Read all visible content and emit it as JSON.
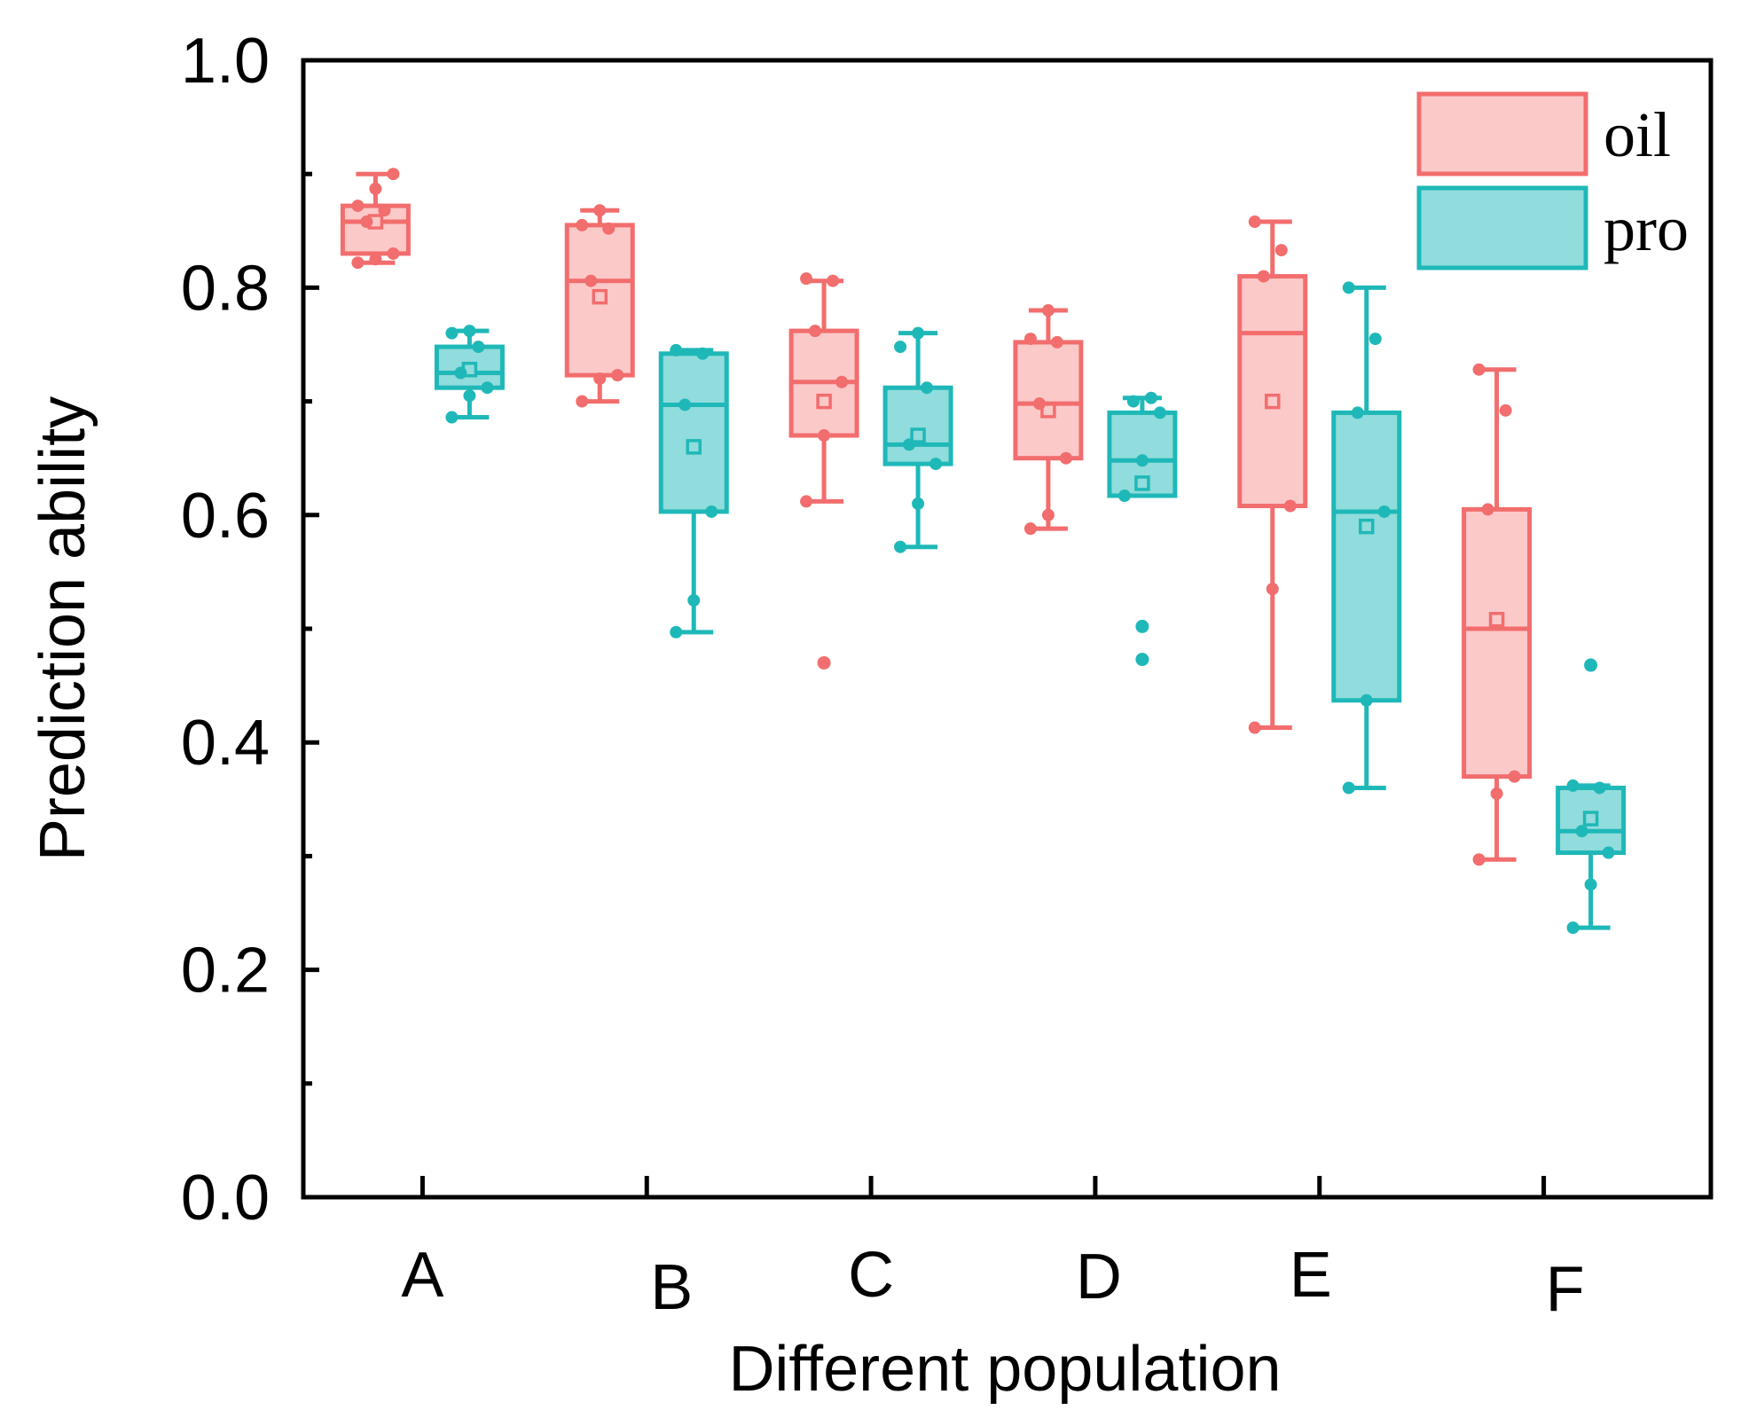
{
  "chart_data": {
    "type": "box",
    "title": "",
    "xlabel": "Different population",
    "ylabel": "Prediction ability",
    "ylim": [
      0.0,
      1.0
    ],
    "yticks": [
      "0.0",
      "0.2",
      "0.4",
      "0.6",
      "0.8",
      "1.0"
    ],
    "categories": [
      "A",
      "B",
      "C",
      "D",
      "E",
      "F"
    ],
    "legend_position": "top-right",
    "series": [
      {
        "name": "oil",
        "stroke": "#f26d6d",
        "fill": "#fcc9c9",
        "boxes": [
          {
            "whisker_low": 0.822,
            "q1": 0.83,
            "median": 0.858,
            "q3": 0.872,
            "whisker_high": 0.9,
            "mean": 0.858,
            "points": [
              0.822,
              0.825,
              0.83,
              0.858,
              0.868,
              0.872,
              0.887,
              0.9
            ],
            "outliers": []
          },
          {
            "whisker_low": 0.7,
            "q1": 0.723,
            "median": 0.806,
            "q3": 0.855,
            "whisker_high": 0.868,
            "mean": 0.792,
            "points": [
              0.7,
              0.72,
              0.723,
              0.806,
              0.852,
              0.855,
              0.868
            ],
            "outliers": []
          },
          {
            "whisker_low": 0.612,
            "q1": 0.67,
            "median": 0.717,
            "q3": 0.762,
            "whisker_high": 0.806,
            "mean": 0.7,
            "points": [
              0.612,
              0.67,
              0.717,
              0.762,
              0.806,
              0.808
            ],
            "outliers": [
              0.47
            ]
          },
          {
            "whisker_low": 0.588,
            "q1": 0.65,
            "median": 0.698,
            "q3": 0.752,
            "whisker_high": 0.78,
            "mean": 0.692,
            "points": [
              0.588,
              0.6,
              0.65,
              0.698,
              0.752,
              0.755,
              0.78
            ],
            "outliers": []
          },
          {
            "whisker_low": 0.413,
            "q1": 0.608,
            "median": 0.76,
            "q3": 0.81,
            "whisker_high": 0.858,
            "mean": 0.7,
            "points": [
              0.413,
              0.535,
              0.608,
              0.81,
              0.833,
              0.858
            ],
            "outliers": []
          },
          {
            "whisker_low": 0.297,
            "q1": 0.37,
            "median": 0.5,
            "q3": 0.605,
            "whisker_high": 0.728,
            "mean": 0.508,
            "points": [
              0.297,
              0.355,
              0.37,
              0.605,
              0.692,
              0.728
            ],
            "outliers": []
          }
        ]
      },
      {
        "name": "pro",
        "stroke": "#1fb8b8",
        "fill": "#91dcdc",
        "boxes": [
          {
            "whisker_low": 0.686,
            "q1": 0.712,
            "median": 0.725,
            "q3": 0.748,
            "whisker_high": 0.762,
            "mean": 0.728,
            "points": [
              0.686,
              0.705,
              0.712,
              0.725,
              0.748,
              0.76,
              0.762
            ],
            "outliers": []
          },
          {
            "whisker_low": 0.497,
            "q1": 0.603,
            "median": 0.697,
            "q3": 0.742,
            "whisker_high": 0.745,
            "mean": 0.66,
            "points": [
              0.497,
              0.525,
              0.603,
              0.697,
              0.742,
              0.745
            ],
            "outliers": []
          },
          {
            "whisker_low": 0.572,
            "q1": 0.645,
            "median": 0.662,
            "q3": 0.712,
            "whisker_high": 0.76,
            "mean": 0.67,
            "points": [
              0.572,
              0.61,
              0.645,
              0.662,
              0.712,
              0.748,
              0.76
            ],
            "outliers": []
          },
          {
            "whisker_low": 0.617,
            "q1": 0.617,
            "median": 0.648,
            "q3": 0.69,
            "whisker_high": 0.703,
            "mean": 0.628,
            "points": [
              0.617,
              0.648,
              0.69,
              0.7,
              0.703
            ],
            "outliers": [
              0.502,
              0.473
            ]
          },
          {
            "whisker_low": 0.36,
            "q1": 0.437,
            "median": 0.603,
            "q3": 0.69,
            "whisker_high": 0.8,
            "mean": 0.59,
            "points": [
              0.36,
              0.437,
              0.603,
              0.69,
              0.755,
              0.8
            ],
            "outliers": []
          },
          {
            "whisker_low": 0.237,
            "q1": 0.303,
            "median": 0.322,
            "q3": 0.36,
            "whisker_high": 0.362,
            "mean": 0.333,
            "points": [
              0.237,
              0.275,
              0.303,
              0.322,
              0.36,
              0.362
            ],
            "outliers": [
              0.468
            ]
          }
        ]
      }
    ]
  }
}
